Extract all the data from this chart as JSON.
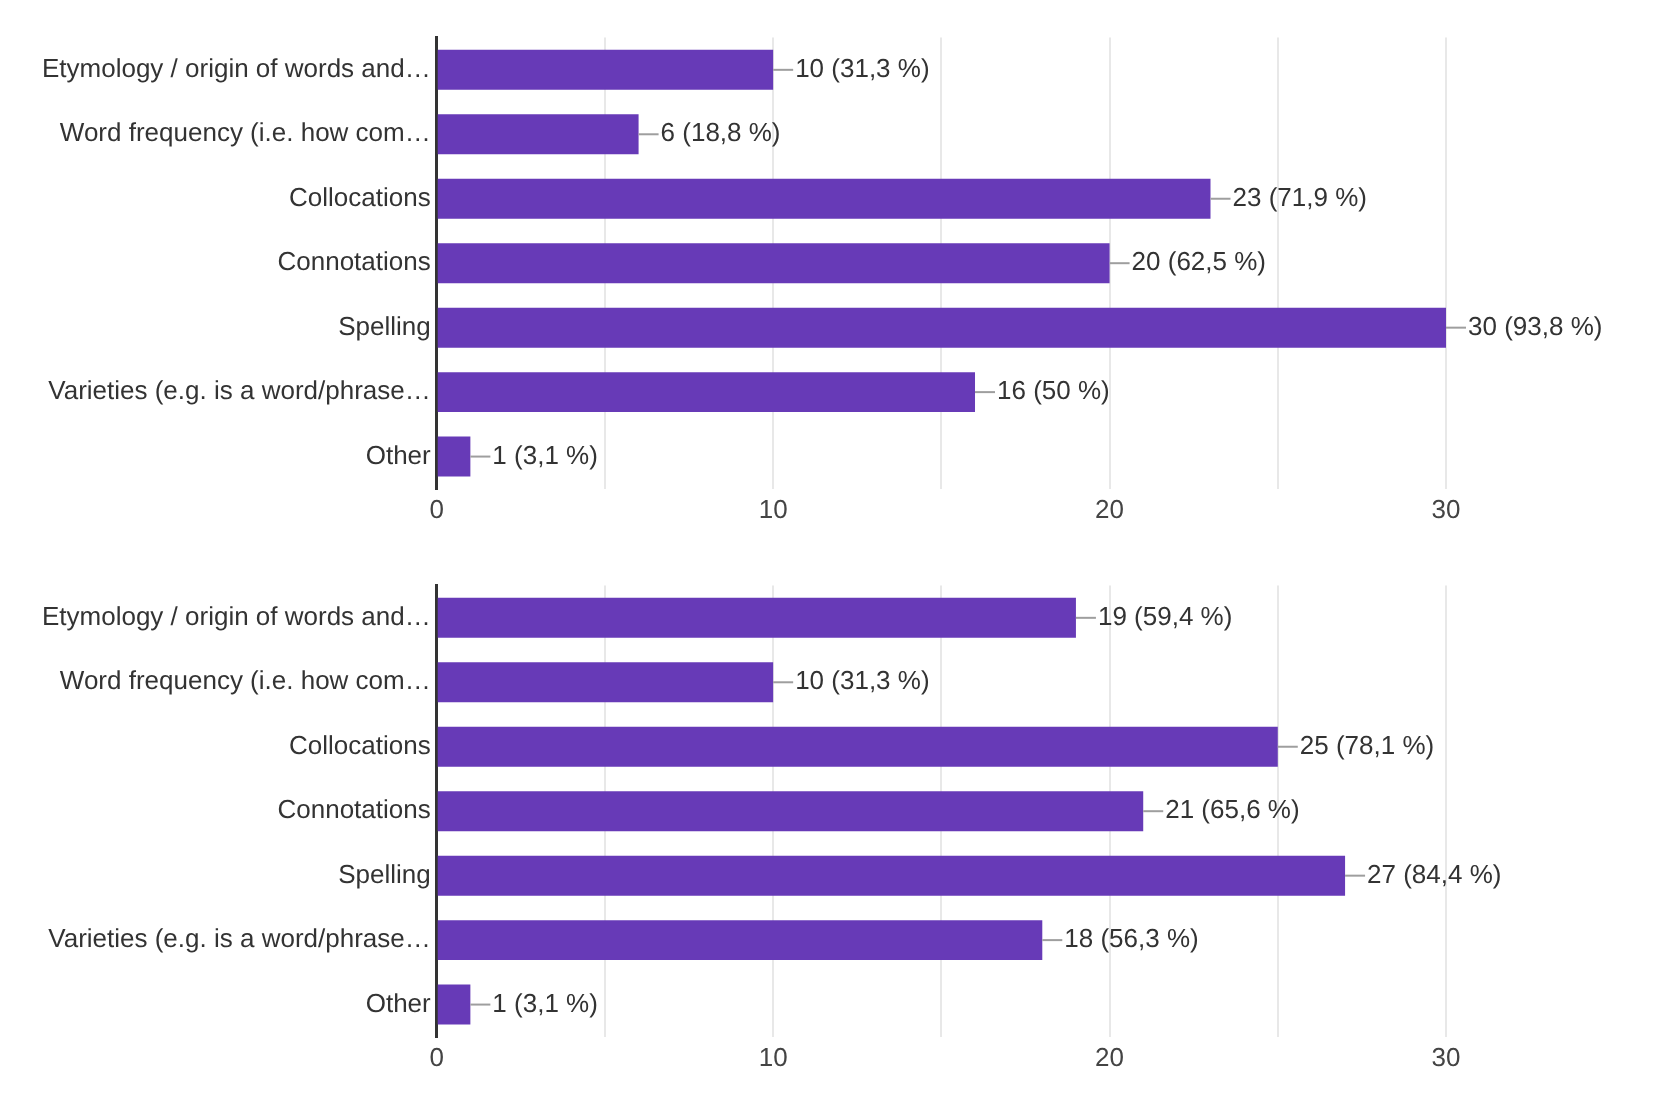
{
  "chart_data": [
    {
      "type": "bar",
      "orientation": "horizontal",
      "categories": [
        "Etymology / origin of words and…",
        "Word frequency (i.e. how com…",
        "Collocations",
        "Connotations",
        "Spelling",
        "Varieties (e.g. is a word/phrase…",
        "Other"
      ],
      "values": [
        10,
        6,
        23,
        20,
        30,
        16,
        1
      ],
      "color": "#673ab7",
      "value_labels": [
        "10 (31,3 %)",
        "6 (18,8 %)",
        "23 (71,9 %)",
        "20 (62,5 %)",
        "30 (93,8 %)",
        "16 (50 %)",
        "1 (3,1 %)"
      ],
      "xlim": [
        0,
        30
      ],
      "xticks": [
        0,
        {
          "value": 5,
          "label": null
        },
        10,
        {
          "value": 15,
          "label": null
        },
        20,
        {
          "value": 25,
          "label": null
        },
        30
      ],
      "grid": "x",
      "legend": false
    },
    {
      "type": "bar",
      "orientation": "horizontal",
      "categories": [
        "Etymology / origin of words and…",
        "Word frequency (i.e. how com…",
        "Collocations",
        "Connotations",
        "Spelling",
        "Varieties (e.g. is a word/phrase…",
        "Other"
      ],
      "values": [
        19,
        10,
        25,
        21,
        27,
        18,
        1
      ],
      "color": "#673ab7",
      "value_labels": [
        "19 (59,4 %)",
        "10 (31,3 %)",
        "25 (78,1 %)",
        "21 (65,6 %)",
        "27 (84,4 %)",
        "18 (56,3 %)",
        "1 (3,1 %)"
      ],
      "xlim": [
        0,
        30
      ],
      "xticks": [
        0,
        {
          "value": 5,
          "label": null
        },
        10,
        {
          "value": 15,
          "label": null
        },
        20,
        {
          "value": 25,
          "label": null
        },
        30
      ],
      "grid": "x",
      "legend": false
    }
  ]
}
